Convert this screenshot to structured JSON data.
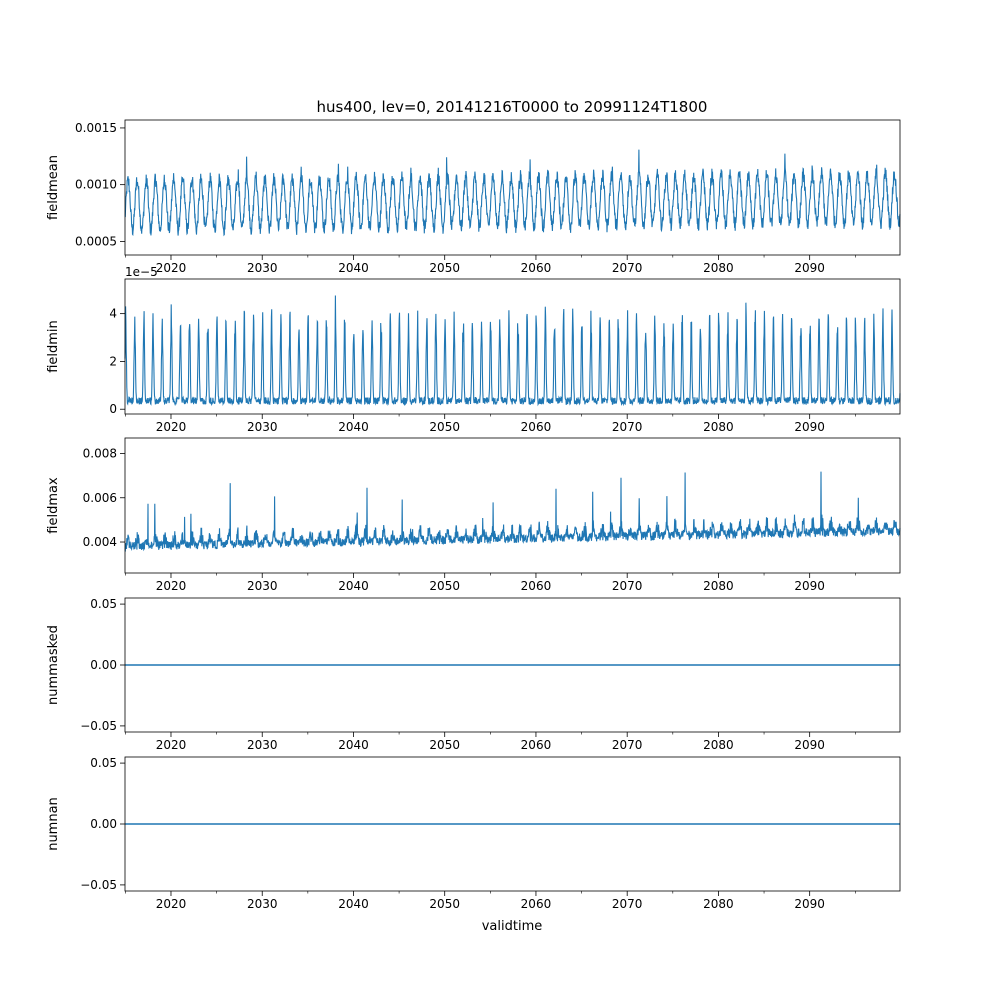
{
  "figure": {
    "title": "hus400, lev=0, 20141216T0000 to 20991124T1800",
    "xlabel": "validtime",
    "line_color": "#1f77b4"
  },
  "chart_data": [
    {
      "type": "line",
      "ylabel": "fieldmean",
      "xlim": [
        2014.96,
        2099.9
      ],
      "ylim": [
        0.00038,
        0.00157
      ],
      "yticks": [
        0.0005,
        0.001,
        0.0015
      ],
      "ytick_labels": [
        "0.0005",
        "0.0010",
        "0.0015"
      ],
      "offset_label": "",
      "x_major_ticks": [
        2020,
        2030,
        2040,
        2050,
        2060,
        2070,
        2080,
        2090
      ],
      "x_tick_labels": [
        "2020",
        "2030",
        "2040",
        "2050",
        "2060",
        "2070",
        "2080",
        "2090"
      ],
      "series": {
        "x_start": 2014.96,
        "x_end": 2099.9,
        "base": 0.00082,
        "amp": 0.00022,
        "trend": 6e-05,
        "noise": 6e-05,
        "spike": 0.0002,
        "kind": "seasonal"
      }
    },
    {
      "type": "line",
      "ylabel": "fieldmin",
      "xlim": [
        2014.96,
        2099.9
      ],
      "ylim": [
        -2e-06,
        5.45e-05
      ],
      "yticks": [
        0,
        2e-05,
        4e-05
      ],
      "ytick_labels": [
        "0",
        "2",
        "4"
      ],
      "offset_label": "1e−5",
      "x_major_ticks": [
        2020,
        2030,
        2040,
        2050,
        2060,
        2070,
        2080,
        2090
      ],
      "x_tick_labels": [
        "2020",
        "2030",
        "2040",
        "2050",
        "2060",
        "2070",
        "2080",
        "2090"
      ],
      "series": {
        "x_start": 2014.96,
        "x_end": 2099.9,
        "base": 2e-06,
        "amp": 3.6e-05,
        "trend": 0.0,
        "noise": 3e-06,
        "spike": 1e-05,
        "kind": "peaks"
      }
    },
    {
      "type": "line",
      "ylabel": "fieldmax",
      "xlim": [
        2014.96,
        2099.9
      ],
      "ylim": [
        0.0026,
        0.0087
      ],
      "yticks": [
        0.004,
        0.006,
        0.008
      ],
      "ytick_labels": [
        "0.004",
        "0.006",
        "0.008"
      ],
      "offset_label": "",
      "x_major_ticks": [
        2020,
        2030,
        2040,
        2050,
        2060,
        2070,
        2080,
        2090
      ],
      "x_tick_labels": [
        "2020",
        "2030",
        "2040",
        "2050",
        "2060",
        "2070",
        "2080",
        "2090"
      ],
      "series": {
        "x_start": 2014.96,
        "x_end": 2099.9,
        "base": 0.0036,
        "amp": 0.0007,
        "trend": 0.0007,
        "noise": 0.0004,
        "spike": 0.003,
        "kind": "bursty"
      }
    },
    {
      "type": "line",
      "ylabel": "nummasked",
      "xlim": [
        2014.96,
        2099.9
      ],
      "ylim": [
        -0.055,
        0.055
      ],
      "yticks": [
        -0.05,
        0,
        0.05
      ],
      "ytick_labels": [
        "−0.05",
        "0.00",
        "0.05"
      ],
      "offset_label": "",
      "x_major_ticks": [
        2020,
        2030,
        2040,
        2050,
        2060,
        2070,
        2080,
        2090
      ],
      "x_tick_labels": [
        "2020",
        "2030",
        "2040",
        "2050",
        "2060",
        "2070",
        "2080",
        "2090"
      ],
      "series": {
        "x_start": 2014.96,
        "x_end": 2099.9,
        "constant": 0,
        "kind": "constant"
      }
    },
    {
      "type": "line",
      "ylabel": "numnan",
      "xlim": [
        2014.96,
        2099.9
      ],
      "ylim": [
        -0.055,
        0.055
      ],
      "yticks": [
        -0.05,
        0,
        0.05
      ],
      "ytick_labels": [
        "−0.05",
        "0.00",
        "0.05"
      ],
      "offset_label": "",
      "x_major_ticks": [
        2020,
        2030,
        2040,
        2050,
        2060,
        2070,
        2080,
        2090
      ],
      "x_tick_labels": [
        "2020",
        "2030",
        "2040",
        "2050",
        "2060",
        "2070",
        "2080",
        "2090"
      ],
      "series": {
        "x_start": 2014.96,
        "x_end": 2099.9,
        "constant": 0,
        "kind": "constant"
      }
    }
  ]
}
